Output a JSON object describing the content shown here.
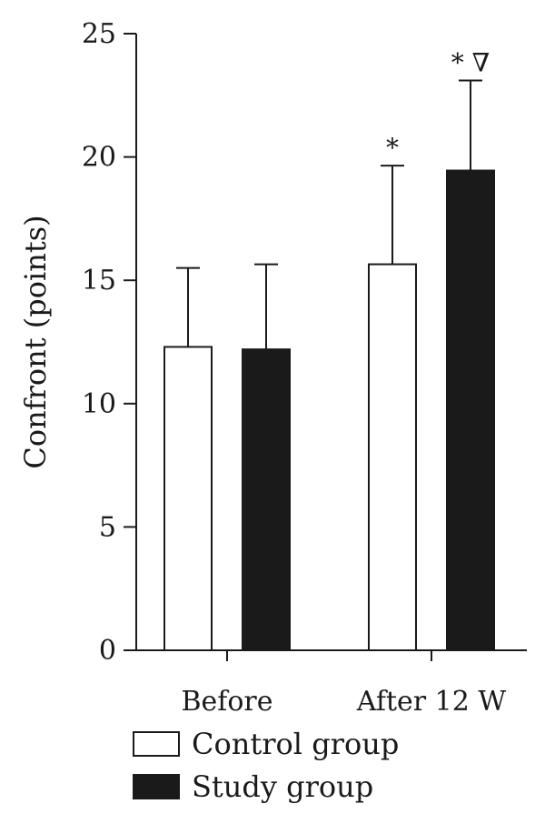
{
  "chart_data": {
    "type": "bar",
    "categories": [
      "Before",
      "After 12 W"
    ],
    "ylabel": "Confront (points)",
    "ylim": [
      0,
      25
    ],
    "yticks": [
      0,
      5,
      10,
      15,
      20,
      25
    ],
    "grid": false,
    "legend_position": "bottom-left",
    "series": [
      {
        "name": "Control group",
        "color": "#ffffff",
        "values": [
          12.3,
          15.65
        ],
        "errors": [
          3.2,
          4.0
        ],
        "annotations": [
          "",
          "*"
        ]
      },
      {
        "name": "Study group",
        "color": "#1a1a1a",
        "values": [
          12.2,
          19.45
        ],
        "errors": [
          3.45,
          3.65
        ],
        "annotations": [
          "",
          "* ∇"
        ]
      }
    ]
  }
}
